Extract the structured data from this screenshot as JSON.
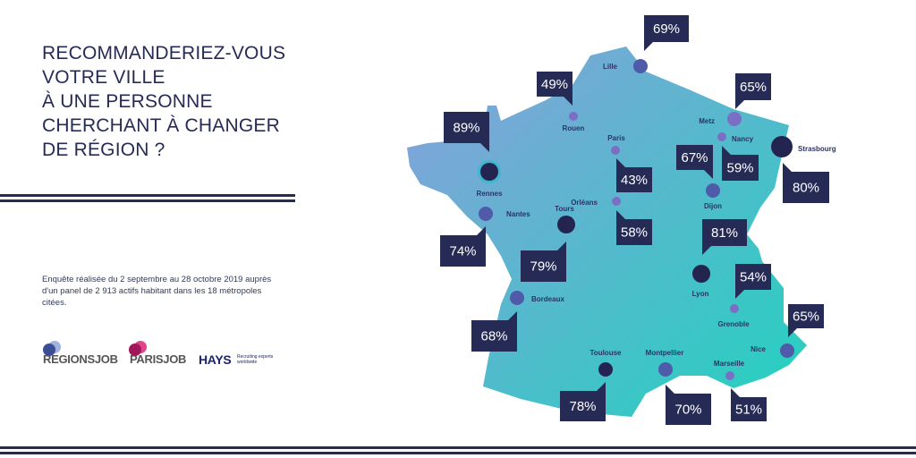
{
  "title": {
    "lines": [
      "RECOMMANDERIEZ-VOUS",
      "VOTRE VILLE",
      "À UNE PERSONNE",
      "CHERCHANT À CHANGER",
      "DE RÉGION ?"
    ]
  },
  "note": "Enquête réalisée du 2 septembre au 28 octobre 2019 auprès d'un panel de 2 913 actifs habitant dans les 18 métropoles citées.",
  "logos": {
    "regionsjob": "REGIONSJOB",
    "parisjob": "PARISJOB",
    "hays": "HAYS",
    "hays_tagline": "Recruiting experts worldwide"
  },
  "colors": {
    "navy": "#262b55",
    "map_left": "#8a9fdc",
    "map_right": "#22d2be",
    "dot_light": "#7a6fc4",
    "dot_mid": "#4f5aa8",
    "dot_dark": "#23244f"
  },
  "cities": [
    {
      "name": "Lille",
      "value": "69%"
    },
    {
      "name": "Rouen",
      "value": "49%"
    },
    {
      "name": "Rennes",
      "value": "89%"
    },
    {
      "name": "Nantes",
      "value": "74%"
    },
    {
      "name": "Tours",
      "value": "79%"
    },
    {
      "name": "Paris",
      "value": "43%"
    },
    {
      "name": "Orléans",
      "value": "58%"
    },
    {
      "name": "Metz",
      "value": "65%"
    },
    {
      "name": "Nancy",
      "value": "59%"
    },
    {
      "name": "Dijon",
      "value": "67%"
    },
    {
      "name": "Strasbourg",
      "value": "80%"
    },
    {
      "name": "Lyon",
      "value": "81%"
    },
    {
      "name": "Grenoble",
      "value": "54%"
    },
    {
      "name": "Bordeaux",
      "value": "68%"
    },
    {
      "name": "Toulouse",
      "value": "78%"
    },
    {
      "name": "Montpellier",
      "value": "70%"
    },
    {
      "name": "Marseille",
      "value": "51%"
    },
    {
      "name": "Nice",
      "value": "65%"
    }
  ]
}
